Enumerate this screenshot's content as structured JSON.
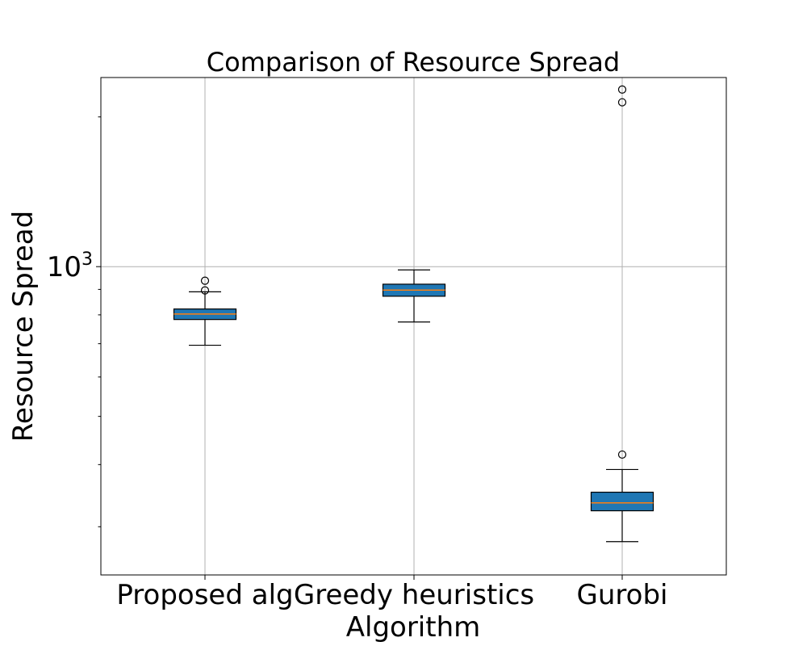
{
  "chart_data": {
    "type": "box",
    "title": "Comparison of Resource Spread",
    "xlabel": "Algorithm",
    "ylabel": "Resource Spread",
    "yscale": "log",
    "ylim": [
      240,
      2400
    ],
    "yticks": [
      {
        "base": "10",
        "exp": "3",
        "value": 1000
      }
    ],
    "grid": true,
    "categories": [
      "Proposed alg",
      "Greedy heuristics",
      "Gurobi"
    ],
    "boxes": [
      {
        "name": "Proposed alg",
        "whislo": 695,
        "q1": 783,
        "med": 803,
        "q3": 822,
        "whishi": 890,
        "fliers": [
          896,
          937
        ]
      },
      {
        "name": "Greedy heuristics",
        "whislo": 774,
        "q1": 872,
        "med": 897,
        "q3": 922,
        "whishi": 985,
        "fliers": []
      },
      {
        "name": "Gurobi",
        "whislo": 280,
        "q1": 323,
        "med": 335,
        "q3": 352,
        "whishi": 391,
        "fliers": [
          419,
          2140,
          2270
        ]
      }
    ],
    "colors": {
      "box_fill": "#1f77b4",
      "median": "#ff7f0e"
    }
  }
}
